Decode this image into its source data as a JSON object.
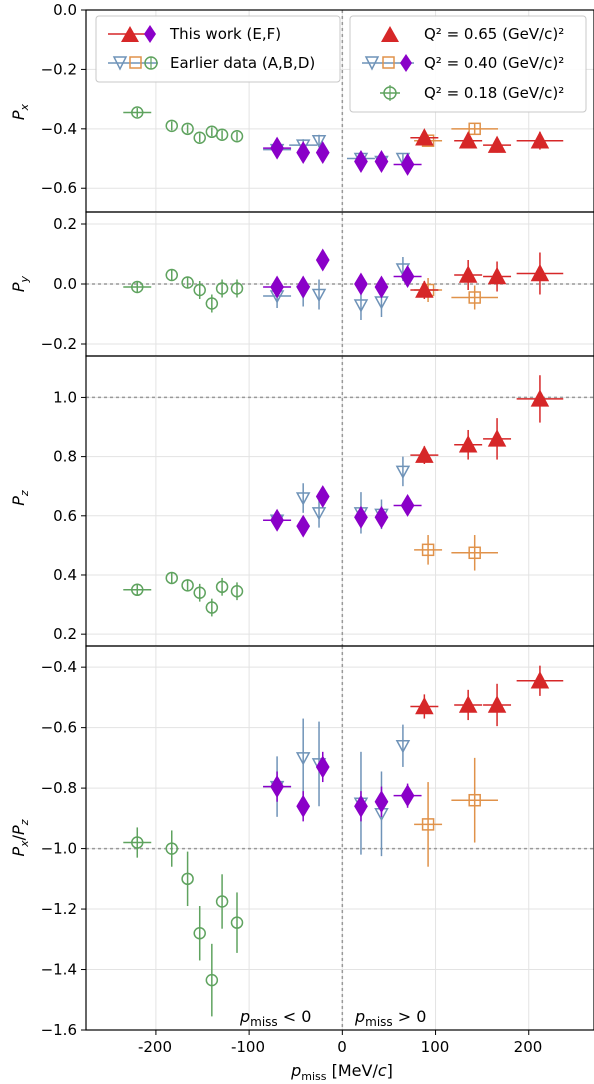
{
  "colors": {
    "red": "#d62728",
    "purple": "#8a00c8",
    "blue": "#6f93b8",
    "orange": "#e0924a",
    "green": "#5fa35f",
    "grid": "#e3e3e3",
    "refline": "#999999"
  },
  "chart_data": {
    "type": "scatter",
    "xlabel": "p_miss [MeV/c]",
    "xlim": [
      -275,
      270
    ],
    "x_ticks": [
      "-200",
      "-100",
      "0",
      "100",
      "200"
    ],
    "region_labels": {
      "left": "p_miss < 0",
      "right": "p_miss > 0"
    },
    "legend": {
      "this_work": "This work (E,F)",
      "earlier": "Earlier data (A,B,D)",
      "q065": "Q² = 0.65 (GeV/c)²",
      "q040": "Q² = 0.40 (GeV/c)²",
      "q018": "Q² = 0.18 (GeV/c)²"
    },
    "panels": [
      {
        "id": "Px",
        "ylabel": "P_x",
        "ylim": [
          -0.68,
          0.0
        ],
        "yticks": [
          0.0,
          -0.2,
          -0.4,
          -0.6
        ],
        "ytick_labels": [
          "0.0",
          "−0.2",
          "−0.4",
          "−0.6"
        ],
        "refline": null,
        "series": [
          {
            "set": "E065",
            "points": [
              [
                88,
                -0.43,
                0.02,
                15,
                0.02
              ],
              [
                135,
                -0.44,
                0.02,
                15,
                0.025
              ],
              [
                166,
                -0.455,
                0.02,
                15,
                0.025
              ],
              [
                212,
                -0.44,
                0.03,
                25,
                0.03
              ]
            ]
          },
          {
            "set": "F040",
            "points": [
              [
                -70,
                -0.465,
                0.02,
                15,
                0.015
              ],
              [
                -42,
                -0.48,
                0.02,
                0,
                0.02
              ],
              [
                -21,
                -0.48,
                0.02,
                0,
                0.02
              ],
              [
                20,
                -0.51,
                0.02,
                0,
                0.02
              ],
              [
                42,
                -0.51,
                0.02,
                0,
                0.02
              ],
              [
                70,
                -0.52,
                0.02,
                15,
                0.02
              ]
            ]
          },
          {
            "set": "B040",
            "points": [
              [
                -70,
                -0.47,
                0.02,
                15,
                0.015
              ],
              [
                -42,
                -0.455,
                0.02,
                15,
                0.02
              ],
              [
                -25,
                -0.44,
                0.02,
                0,
                0.02
              ],
              [
                20,
                -0.5,
                0.02,
                15,
                0.015
              ],
              [
                42,
                -0.51,
                0.02,
                0,
                0.015
              ],
              [
                65,
                -0.5,
                0.02,
                0,
                0.015
              ]
            ]
          },
          {
            "set": "A065",
            "points": [
              [
                92,
                -0.44,
                0.02,
                15,
                0.02
              ],
              [
                142,
                -0.4,
                0.02,
                25,
                0.02
              ]
            ]
          },
          {
            "set": "D018",
            "points": [
              [
                -220,
                -0.345,
                0.02,
                15,
                0.015
              ],
              [
                -183,
                -0.39,
                0.02,
                0,
                0.015
              ],
              [
                -166,
                -0.4,
                0.02,
                0,
                0.015
              ],
              [
                -153,
                -0.43,
                0.02,
                0,
                0.015
              ],
              [
                -140,
                -0.41,
                0.02,
                0,
                0.015
              ],
              [
                -129,
                -0.42,
                0.02,
                0,
                0.015
              ],
              [
                -113,
                -0.425,
                0.02,
                0,
                0.015
              ]
            ]
          }
        ]
      },
      {
        "id": "Py",
        "ylabel": "P_y",
        "ylim": [
          -0.24,
          0.24
        ],
        "yticks": [
          0.2,
          0.0,
          -0.2
        ],
        "ytick_labels": [
          "0.2",
          "0.0",
          "−0.2"
        ],
        "refline": 0.0,
        "series": [
          {
            "set": "E065",
            "points": [
              [
                88,
                -0.02,
                0.03,
                15,
                0.03
              ],
              [
                135,
                0.03,
                0.04,
                15,
                0.05
              ],
              [
                166,
                0.025,
                0.04,
                15,
                0.05
              ],
              [
                212,
                0.035,
                0.06,
                25,
                0.07
              ]
            ]
          },
          {
            "set": "F040",
            "points": [
              [
                -70,
                -0.01,
                0.03,
                15,
                0.02
              ],
              [
                -42,
                -0.01,
                0.03,
                0,
                0.03
              ],
              [
                -21,
                0.08,
                0.03,
                0,
                0.03
              ],
              [
                20,
                0.0,
                0.03,
                0,
                0.03
              ],
              [
                42,
                -0.01,
                0.03,
                0,
                0.03
              ],
              [
                70,
                0.025,
                0.03,
                15,
                0.03
              ]
            ]
          },
          {
            "set": "B040",
            "points": [
              [
                -70,
                -0.04,
                0.03,
                15,
                0.04
              ],
              [
                -42,
                -0.025,
                0.03,
                0,
                0.05
              ],
              [
                -25,
                -0.035,
                0.03,
                0,
                0.05
              ],
              [
                20,
                -0.07,
                0.03,
                0,
                0.05
              ],
              [
                42,
                -0.06,
                0.03,
                0,
                0.05
              ],
              [
                65,
                0.05,
                0.03,
                0,
                0.04
              ]
            ]
          },
          {
            "set": "A065",
            "points": [
              [
                92,
                -0.02,
                0.03,
                15,
                0.04
              ],
              [
                142,
                -0.045,
                0.03,
                25,
                0.04
              ]
            ]
          },
          {
            "set": "D018",
            "points": [
              [
                -220,
                -0.01,
                0.03,
                15,
                0.02
              ],
              [
                -183,
                0.03,
                0.03,
                0,
                0.02
              ],
              [
                -166,
                0.005,
                0.03,
                0,
                0.02
              ],
              [
                -153,
                -0.02,
                0.03,
                0,
                0.03
              ],
              [
                -140,
                -0.065,
                0.03,
                0,
                0.03
              ],
              [
                -129,
                -0.015,
                0.03,
                0,
                0.03
              ],
              [
                -113,
                -0.015,
                0.03,
                0,
                0.03
              ]
            ]
          }
        ]
      },
      {
        "id": "Pz",
        "ylabel": "P_z",
        "ylim": [
          0.16,
          1.14
        ],
        "yticks": [
          1.0,
          0.8,
          0.6,
          0.4,
          0.2
        ],
        "ytick_labels": [
          "1.0",
          "0.8",
          "0.6",
          "0.4",
          "0.2"
        ],
        "refline": 1.0,
        "series": [
          {
            "set": "E065",
            "points": [
              [
                88,
                0.805,
                0.02,
                15,
                0.03
              ],
              [
                135,
                0.84,
                0.02,
                15,
                0.05
              ],
              [
                166,
                0.86,
                0.02,
                15,
                0.07
              ],
              [
                212,
                0.995,
                0.03,
                25,
                0.08
              ]
            ]
          },
          {
            "set": "F040",
            "points": [
              [
                -70,
                0.585,
                0.02,
                15,
                0.02
              ],
              [
                -42,
                0.565,
                0.02,
                0,
                0.02
              ],
              [
                -21,
                0.665,
                0.02,
                0,
                0.03
              ],
              [
                20,
                0.595,
                0.02,
                0,
                0.03
              ],
              [
                42,
                0.595,
                0.02,
                0,
                0.03
              ],
              [
                70,
                0.635,
                0.02,
                15,
                0.02
              ]
            ]
          },
          {
            "set": "B040",
            "points": [
              [
                -70,
                0.585,
                0.02,
                15,
                0.03
              ],
              [
                -42,
                0.66,
                0.02,
                0,
                0.05
              ],
              [
                -25,
                0.61,
                0.02,
                0,
                0.05
              ],
              [
                20,
                0.61,
                0.02,
                0,
                0.07
              ],
              [
                42,
                0.605,
                0.02,
                0,
                0.05
              ],
              [
                65,
                0.75,
                0.02,
                0,
                0.05
              ]
            ]
          },
          {
            "set": "A065",
            "points": [
              [
                92,
                0.485,
                0.02,
                15,
                0.05
              ],
              [
                142,
                0.475,
                0.02,
                25,
                0.06
              ]
            ]
          },
          {
            "set": "D018",
            "points": [
              [
                -220,
                0.35,
                0.02,
                15,
                0.02
              ],
              [
                -183,
                0.39,
                0.02,
                0,
                0.02
              ],
              [
                -166,
                0.365,
                0.02,
                0,
                0.02
              ],
              [
                -153,
                0.34,
                0.02,
                0,
                0.03
              ],
              [
                -140,
                0.29,
                0.02,
                0,
                0.03
              ],
              [
                -129,
                0.36,
                0.02,
                0,
                0.03
              ],
              [
                -113,
                0.345,
                0.02,
                0,
                0.03
              ]
            ]
          }
        ]
      },
      {
        "id": "PxPz",
        "ylabel": "P_x/P_z",
        "ylim": [
          -1.6,
          -0.33
        ],
        "yticks": [
          -0.4,
          -0.6,
          -0.8,
          -1.0,
          -1.2,
          -1.4,
          -1.6
        ],
        "ytick_labels": [
          "−0.4",
          "−0.6",
          "−0.8",
          "−1.0",
          "−1.2",
          "−1.4",
          "−1.6"
        ],
        "refline": -1.0,
        "series": [
          {
            "set": "E065",
            "points": [
              [
                88,
                -0.53,
                0.03,
                15,
                0.04
              ],
              [
                135,
                -0.525,
                0.03,
                15,
                0.05
              ],
              [
                166,
                -0.525,
                0.03,
                15,
                0.07
              ],
              [
                212,
                -0.445,
                0.03,
                25,
                0.05
              ]
            ]
          },
          {
            "set": "F040",
            "points": [
              [
                -70,
                -0.795,
                0.03,
                15,
                0.05
              ],
              [
                -42,
                -0.86,
                0.03,
                0,
                0.05
              ],
              [
                -21,
                -0.73,
                0.03,
                0,
                0.05
              ],
              [
                20,
                -0.86,
                0.03,
                0,
                0.05
              ],
              [
                42,
                -0.845,
                0.03,
                0,
                0.05
              ],
              [
                70,
                -0.825,
                0.03,
                15,
                0.04
              ]
            ]
          },
          {
            "set": "B040",
            "points": [
              [
                -70,
                -0.795,
                0.03,
                15,
                0.1
              ],
              [
                -42,
                -0.7,
                0.03,
                0,
                0.13
              ],
              [
                -25,
                -0.72,
                0.03,
                0,
                0.14
              ],
              [
                20,
                -0.85,
                0.03,
                0,
                0.17
              ],
              [
                42,
                -0.885,
                0.03,
                0,
                0.14
              ],
              [
                65,
                -0.66,
                0.03,
                0,
                0.07
              ]
            ]
          },
          {
            "set": "A065",
            "points": [
              [
                92,
                -0.92,
                0.03,
                15,
                0.14
              ],
              [
                142,
                -0.84,
                0.03,
                25,
                0.14
              ]
            ]
          },
          {
            "set": "D018",
            "points": [
              [
                -220,
                -0.98,
                0.03,
                15,
                0.05
              ],
              [
                -183,
                -1.0,
                0.03,
                0,
                0.06
              ],
              [
                -166,
                -1.1,
                0.03,
                0,
                0.09
              ],
              [
                -153,
                -1.28,
                0.03,
                0,
                0.09
              ],
              [
                -140,
                -1.435,
                0.03,
                0,
                0.12
              ],
              [
                -129,
                -1.175,
                0.03,
                0,
                0.09
              ],
              [
                -113,
                -1.245,
                0.03,
                0,
                0.1
              ]
            ]
          }
        ]
      }
    ]
  }
}
